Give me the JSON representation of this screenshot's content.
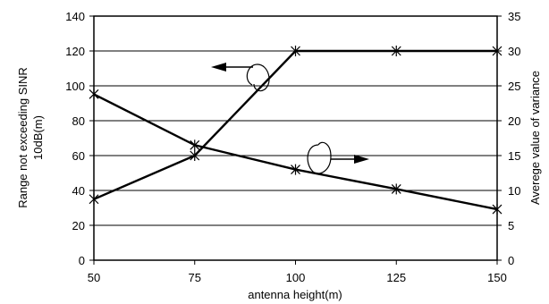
{
  "chart_data": {
    "type": "line",
    "xlabel": "antenna height(m)",
    "ylabel_left": [
      "Range not exceeding SINR",
      "10dB(m)"
    ],
    "ylabel_right": "Averege value of variance",
    "x": [
      50,
      75,
      100,
      125,
      150
    ],
    "xlim": [
      50,
      150
    ],
    "ylim_left": [
      0,
      140
    ],
    "ylim_right": [
      0,
      35
    ],
    "x_ticks": [
      "50",
      "75",
      "100",
      "125",
      "150"
    ],
    "y_left_ticks": [
      "0",
      "20",
      "40",
      "60",
      "80",
      "100",
      "120",
      "140"
    ],
    "y_right_ticks": [
      "0",
      "5",
      "10",
      "15",
      "20",
      "25",
      "30",
      "35"
    ],
    "grid": "horizontal",
    "series": [
      {
        "axis": "left",
        "marker": "star",
        "values": [
          35,
          60,
          120,
          120,
          120
        ]
      },
      {
        "axis": "right",
        "marker": "star",
        "values": [
          23.8,
          16.5,
          13,
          10.2,
          7.3
        ]
      }
    ],
    "annotations": [
      {
        "type": "arrow-left",
        "refers_to_axis": "left"
      },
      {
        "type": "arrow-right",
        "refers_to_axis": "right"
      }
    ],
    "colors": {
      "line": "#000000",
      "grid": "#000000",
      "background": "#ffffff"
    }
  }
}
